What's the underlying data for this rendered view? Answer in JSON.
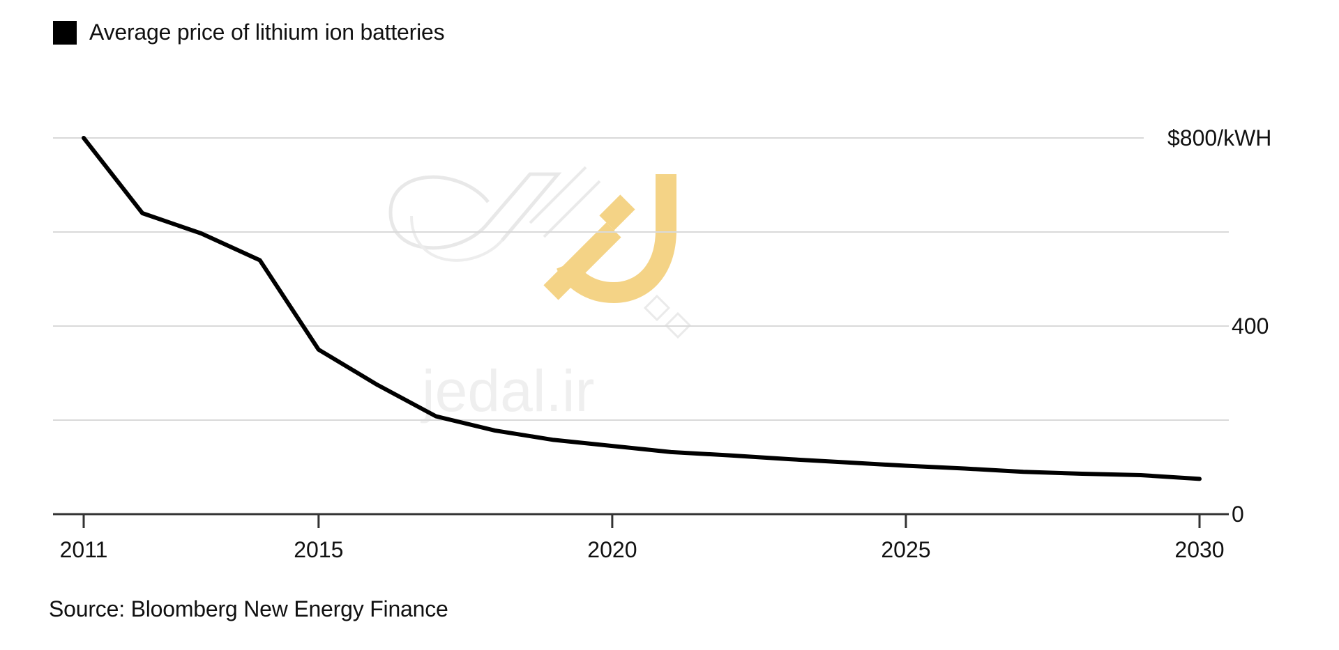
{
  "legend": {
    "label": "Average price of lithium ion batteries",
    "color": "#000000"
  },
  "source": "Source: Bloomberg New Energy Finance",
  "watermark": {
    "text": "jedal.ir",
    "accent": "#f3cf7a"
  },
  "chart_data": {
    "type": "line",
    "title": "",
    "xlabel": "",
    "ylabel": "",
    "xlim": [
      2010.4,
      2031.0
    ],
    "ylim": [
      0,
      800
    ],
    "grid": true,
    "legend_position": "top-left",
    "y_axis_position": "right",
    "x_ticks": [
      2011,
      2015,
      2020,
      2025,
      2030
    ],
    "x_tick_labels": [
      "2011",
      "2015",
      "2020",
      "2025",
      "2030"
    ],
    "y_gridlines": [
      0,
      200,
      400,
      600,
      800
    ],
    "y_ticks": [
      0,
      400,
      800
    ],
    "y_tick_labels": [
      "0",
      "400",
      "$800/kWH"
    ],
    "series": [
      {
        "name": "Average price of lithium ion batteries",
        "color": "#000000",
        "x": [
          2011,
          2012,
          2013,
          2014,
          2015,
          2016,
          2017,
          2018,
          2019,
          2020,
          2021,
          2022,
          2023,
          2024,
          2025,
          2026,
          2027,
          2028,
          2029,
          2030
        ],
        "y": [
          800,
          640,
          597,
          540,
          350,
          275,
          208,
          178,
          158,
          145,
          132,
          125,
          117,
          110,
          103,
          97,
          90,
          86,
          83,
          75
        ]
      }
    ]
  }
}
